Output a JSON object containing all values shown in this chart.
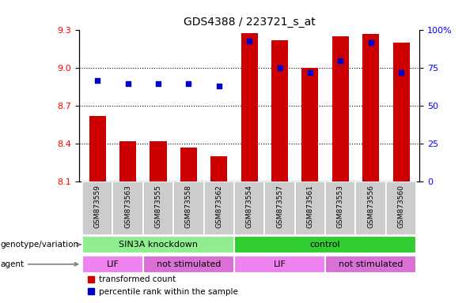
{
  "title": "GDS4388 / 223721_s_at",
  "samples": [
    "GSM873559",
    "GSM873563",
    "GSM873555",
    "GSM873558",
    "GSM873562",
    "GSM873554",
    "GSM873557",
    "GSM873561",
    "GSM873553",
    "GSM873556",
    "GSM873560"
  ],
  "red_values": [
    8.62,
    8.42,
    8.42,
    8.37,
    8.3,
    9.28,
    9.22,
    9.0,
    9.25,
    9.27,
    9.2
  ],
  "blue_values": [
    67,
    65,
    65,
    65,
    63,
    93,
    75,
    72,
    80,
    92,
    72
  ],
  "ylim_left": [
    8.1,
    9.3
  ],
  "ylim_right": [
    0,
    100
  ],
  "yticks_left": [
    8.1,
    8.4,
    8.7,
    9.0,
    9.3
  ],
  "yticks_right": [
    0,
    25,
    50,
    75,
    100
  ],
  "ytick_labels_right": [
    "0",
    "25",
    "50",
    "75",
    "100%"
  ],
  "bar_color": "#cc0000",
  "dot_color": "#0000cc",
  "groups": [
    {
      "label": "SIN3A knockdown",
      "start": 0,
      "end": 4,
      "color": "#90ee90"
    },
    {
      "label": "control",
      "start": 5,
      "end": 10,
      "color": "#32cd32"
    }
  ],
  "agents": [
    {
      "label": "LIF",
      "start": 0,
      "end": 1,
      "color": "#ee82ee"
    },
    {
      "label": "not stimulated",
      "start": 2,
      "end": 4,
      "color": "#da70d6"
    },
    {
      "label": "LIF",
      "start": 5,
      "end": 7,
      "color": "#ee82ee"
    },
    {
      "label": "not stimulated",
      "start": 8,
      "end": 10,
      "color": "#da70d6"
    }
  ],
  "left_labels": [
    "genotype/variation",
    "agent"
  ],
  "legend_items": [
    "transformed count",
    "percentile rank within the sample"
  ],
  "sample_bg_color": "#cccccc"
}
